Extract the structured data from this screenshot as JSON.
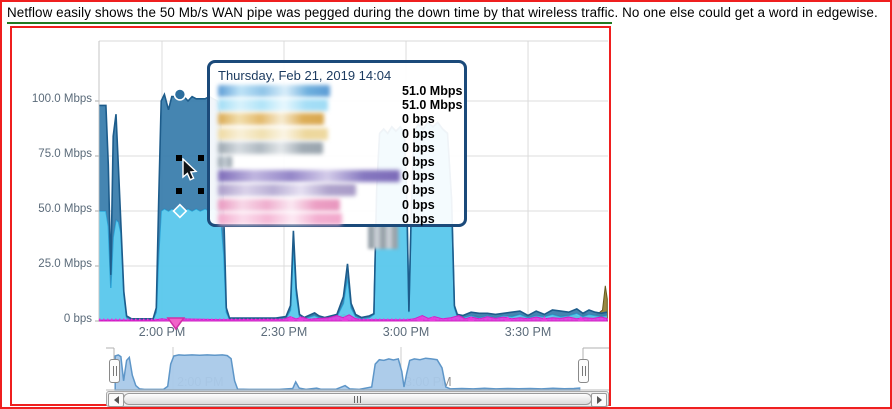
{
  "caption": "Netflow easily shows the 50 Mb/s WAN pipe was pegged during the down time by that wireless traffic.  No one else could get a word in edgewise.",
  "tooltip": {
    "title": "Thursday, Feb 21, 2019 14:04",
    "rows": [
      {
        "value": "51.0 Mbps",
        "chip_width": 112,
        "chip_colors": [
          "#5B9BD5",
          "#BEE3F7",
          "#8FC4E8",
          "#D9EEFA",
          "#6FB0DE"
        ]
      },
      {
        "value": "51.0 Mbps",
        "chip_width": 110,
        "chip_colors": [
          "#9FDCF5",
          "#D8F2FC",
          "#B0E4F8",
          "#E8F8FE",
          "#A5DEF6"
        ]
      },
      {
        "value": "0 bps",
        "chip_width": 106,
        "chip_colors": [
          "#D9A850",
          "#F2DFAE",
          "#E3B96B",
          "#F7ECD2",
          "#DDAE58"
        ]
      },
      {
        "value": "0 bps",
        "chip_width": 110,
        "chip_colors": [
          "#EED9A0",
          "#F9F0D8",
          "#F0E0B0",
          "#FBF5E5",
          "#EDD79C"
        ]
      },
      {
        "value": "0 bps",
        "chip_width": 105,
        "chip_colors": [
          "#9AA5AE",
          "#D5DBE0",
          "#AEB8C0",
          "#E3E7EA",
          "#A0ABB4"
        ]
      },
      {
        "value": "0 bps",
        "chip_width": 14,
        "chip_colors": [
          "#8C98A3",
          "#C9D1D8"
        ]
      },
      {
        "value": "0 bps",
        "chip_width": 182,
        "chip_colors": [
          "#7C6BB8",
          "#C0B6E0",
          "#9486C8",
          "#D4CCEA",
          "#8678C0"
        ]
      },
      {
        "value": "0 bps",
        "chip_width": 138,
        "chip_colors": [
          "#A99CC8",
          "#DAD2EA",
          "#B8AED4",
          "#E6E0F2",
          "#AFA3CC"
        ]
      },
      {
        "value": "0 bps",
        "chip_width": 122,
        "chip_colors": [
          "#E896BE",
          "#F8D8E8",
          "#EFAECE",
          "#FBE8F2",
          "#EC9FC4"
        ]
      },
      {
        "value": "0 bps",
        "chip_width": 124,
        "chip_colors": [
          "#F2A8CC",
          "#FBDCEC",
          "#F5B8D6",
          "#FDEAF4",
          "#F3AED0"
        ]
      }
    ]
  },
  "chart_data": {
    "type": "area",
    "title": "",
    "x_unit": "minutes_after_1pm",
    "x_range": [
      104.6,
      229.5
    ],
    "grid": true,
    "y_axis": {
      "max": 110,
      "ticks": [
        {
          "v": 100,
          "label": "100.0 Mbps"
        },
        {
          "v": 75,
          "label": "75.0 Mbps"
        },
        {
          "v": 50,
          "label": "50.0 Mbps"
        },
        {
          "v": 25,
          "label": "25.0 Mbps"
        },
        {
          "v": 0,
          "label": "0 bps"
        }
      ]
    },
    "x_axis": {
      "ticks": [
        {
          "t": 120,
          "label": "2:00 PM"
        },
        {
          "t": 150,
          "label": "2:30 PM"
        },
        {
          "t": 180,
          "label": "3:00 PM"
        },
        {
          "t": 210,
          "label": "3:30 PM"
        }
      ]
    },
    "stacked": {
      "names": [
        "redacted-series-cyan",
        "redacted-series-blue"
      ],
      "colors": {
        "bottom_fill": "#58C7EC",
        "bottom_line": "#2AA7DA",
        "top_fill": "#3B7EAD",
        "top_line": "#1D5C8B"
      },
      "points": [
        [
          104.6,
          50,
          48
        ],
        [
          106.2,
          50,
          48
        ],
        [
          106.8,
          43,
          28
        ],
        [
          107.4,
          15,
          6
        ],
        [
          108.0,
          38,
          46
        ],
        [
          108.7,
          46,
          48
        ],
        [
          109.3,
          45,
          24
        ],
        [
          109.9,
          40,
          4
        ],
        [
          110.6,
          12,
          1.5
        ],
        [
          111.3,
          1.5,
          0.8
        ],
        [
          112.5,
          0.6,
          0.4
        ],
        [
          117.8,
          0.6,
          0.4
        ],
        [
          118.6,
          4,
          2
        ],
        [
          119.2,
          30,
          25
        ],
        [
          119.8,
          50,
          50
        ],
        [
          120.6,
          51,
          52
        ],
        [
          121.6,
          50,
          46
        ],
        [
          122.4,
          51,
          51
        ],
        [
          123.4,
          50,
          52
        ],
        [
          124.4,
          51,
          51
        ],
        [
          125.4,
          50,
          52
        ],
        [
          126.4,
          51,
          49
        ],
        [
          127.4,
          50,
          52
        ],
        [
          128.4,
          51,
          50
        ],
        [
          129.4,
          50,
          51
        ],
        [
          130.6,
          51,
          50
        ],
        [
          131.6,
          50,
          52
        ],
        [
          132.6,
          51,
          50
        ],
        [
          133.6,
          50,
          50
        ],
        [
          134.4,
          48,
          46
        ],
        [
          135.2,
          30,
          18
        ],
        [
          135.8,
          4,
          2
        ],
        [
          136.6,
          0.8,
          0.5
        ],
        [
          140,
          0.8,
          0.5
        ],
        [
          148,
          0.8,
          0.5
        ],
        [
          150.5,
          1.2,
          0.8
        ],
        [
          151.6,
          5,
          2
        ],
        [
          152.3,
          34,
          7
        ],
        [
          153.0,
          12,
          3
        ],
        [
          153.8,
          2,
          1
        ],
        [
          155,
          1,
          0.6
        ],
        [
          157.5,
          2.5,
          1.2
        ],
        [
          158.6,
          1.5,
          0.8
        ],
        [
          160,
          1,
          0.6
        ],
        [
          163,
          2,
          1
        ],
        [
          164.6,
          8,
          3
        ],
        [
          165.6,
          20,
          6
        ],
        [
          166.5,
          6,
          2
        ],
        [
          167.6,
          2,
          1
        ],
        [
          169,
          1,
          0.6
        ],
        [
          171,
          1.5,
          0.8
        ],
        [
          172.1,
          3,
          0.3
        ],
        [
          172.8,
          60,
          0.3
        ],
        [
          173.5,
          85,
          0.3
        ],
        [
          174.5,
          87,
          0.3
        ],
        [
          175.5,
          85,
          0.3
        ],
        [
          176.5,
          88,
          0.3
        ],
        [
          177.5,
          86,
          0.3
        ],
        [
          178.6,
          88,
          0.3
        ],
        [
          179.6,
          85,
          0.3
        ],
        [
          180.2,
          55,
          0.3
        ],
        [
          180.7,
          4,
          0.3
        ],
        [
          181.3,
          50,
          0.3
        ],
        [
          182.0,
          86,
          0.3
        ],
        [
          183.0,
          89,
          0.3
        ],
        [
          184.2,
          87,
          0.3
        ],
        [
          185.4,
          90,
          0.3
        ],
        [
          186.6,
          88,
          0.3
        ],
        [
          187.8,
          90,
          0.3
        ],
        [
          189.0,
          87,
          0.3
        ],
        [
          190.2,
          85,
          0.3
        ],
        [
          191.2,
          55,
          0.3
        ],
        [
          191.9,
          6,
          1
        ],
        [
          192.6,
          2,
          1
        ],
        [
          194,
          1.5,
          1
        ],
        [
          196,
          2.5,
          1.5
        ],
        [
          198,
          1.5,
          2
        ],
        [
          200,
          2.5,
          1
        ],
        [
          202,
          1.5,
          1.5
        ],
        [
          204,
          2.5,
          1
        ],
        [
          206,
          2,
          2
        ],
        [
          208,
          3,
          1.5
        ],
        [
          210,
          1.5,
          1
        ],
        [
          212,
          2.5,
          2
        ],
        [
          214,
          2,
          1
        ],
        [
          216,
          3,
          2
        ],
        [
          218,
          2,
          2.5
        ],
        [
          220,
          2.5,
          1.5
        ],
        [
          222,
          3.5,
          2
        ],
        [
          223.5,
          2,
          1.5
        ],
        [
          225,
          3,
          2
        ],
        [
          226.5,
          2.5,
          1.5
        ],
        [
          228,
          2,
          1.5
        ],
        [
          229.4,
          2.5,
          1.5
        ]
      ]
    },
    "extra_series": [
      {
        "name": "redacted-series-olive",
        "fill": "#8F7F33",
        "line": "#655A1E",
        "points": [
          [
            104.6,
            0.3
          ],
          [
            148,
            0.3
          ],
          [
            150,
            0.8
          ],
          [
            151.5,
            1.5
          ],
          [
            153,
            0.8
          ],
          [
            156,
            1.5
          ],
          [
            157.8,
            3.5
          ],
          [
            159,
            1
          ],
          [
            161,
            0.8
          ],
          [
            163.5,
            2
          ],
          [
            164.8,
            3
          ],
          [
            166,
            1.5
          ],
          [
            168,
            0.6
          ],
          [
            171,
            0.4
          ],
          [
            173,
            0.3
          ],
          [
            192,
            0.5
          ],
          [
            193.5,
            2
          ],
          [
            195,
            1
          ],
          [
            197,
            2.5
          ],
          [
            199,
            1.2
          ],
          [
            201,
            2
          ],
          [
            203,
            1
          ],
          [
            205,
            2.2
          ],
          [
            207,
            1.2
          ],
          [
            209,
            2.5
          ],
          [
            211,
            1.5
          ],
          [
            213,
            2
          ],
          [
            215,
            1
          ],
          [
            217,
            2.5
          ],
          [
            219,
            1.5
          ],
          [
            221,
            3
          ],
          [
            222.5,
            1.8
          ],
          [
            224,
            3.5
          ],
          [
            225.5,
            2
          ],
          [
            227,
            3
          ],
          [
            228.3,
            5
          ],
          [
            229.0,
            16
          ],
          [
            229.5,
            10
          ]
        ]
      },
      {
        "name": "redacted-series-magenta",
        "fill": "#E93BDC",
        "line": "#D21FC4",
        "points": [
          [
            104.6,
            0.4
          ],
          [
            118,
            0.4
          ],
          [
            120,
            1
          ],
          [
            122,
            0.6
          ],
          [
            124,
            1
          ],
          [
            135,
            0.6
          ],
          [
            150,
            0.8
          ],
          [
            151.5,
            2
          ],
          [
            153,
            1
          ],
          [
            154.5,
            1.8
          ],
          [
            156,
            0.8
          ],
          [
            161,
            1.5
          ],
          [
            163,
            2.5
          ],
          [
            164.5,
            1.5
          ],
          [
            166,
            2.8
          ],
          [
            167.5,
            1.2
          ],
          [
            169,
            0.6
          ],
          [
            180,
            0.5
          ],
          [
            182,
            1
          ],
          [
            184,
            2.5
          ],
          [
            185.5,
            1.2
          ],
          [
            187,
            2
          ],
          [
            189,
            1
          ],
          [
            191,
            1.5
          ],
          [
            193,
            2.5
          ],
          [
            194.5,
            1
          ],
          [
            196,
            1.8
          ],
          [
            198,
            1
          ],
          [
            200,
            2
          ],
          [
            202,
            1.2
          ],
          [
            204,
            1.8
          ],
          [
            206,
            1
          ],
          [
            208,
            1.5
          ],
          [
            210,
            1
          ],
          [
            212,
            1.8
          ],
          [
            214,
            1
          ],
          [
            216,
            1.5
          ],
          [
            218,
            1.2
          ],
          [
            220,
            1.8
          ],
          [
            222,
            1
          ],
          [
            224,
            1.5
          ],
          [
            226,
            1.2
          ],
          [
            228,
            1.8
          ],
          [
            229.4,
            1.2
          ]
        ]
      }
    ],
    "baseline_dotted_color": "#EE2EE0",
    "hover": {
      "t": 124.4,
      "total_v": 103,
      "mid_v": 50
    },
    "baseline_marker": {
      "big_t": 123.4,
      "small_ts": [
        151.8,
        154,
        165,
        183.5,
        186.5,
        196,
        205,
        214,
        223
      ]
    },
    "overview": {
      "fill": "#A9C9E9",
      "line": "#5E96C8",
      "x_ticks": [
        {
          "t": 120,
          "label": "2:00 PM"
        },
        {
          "t": 180,
          "label": "3:00 PM"
        }
      ],
      "points": [
        [
          104.8,
          92
        ],
        [
          105.6,
          95
        ],
        [
          106.3,
          90
        ],
        [
          107.0,
          25
        ],
        [
          107.8,
          80
        ],
        [
          108.5,
          88
        ],
        [
          109.3,
          40
        ],
        [
          110.2,
          12
        ],
        [
          111.2,
          3
        ],
        [
          112.5,
          1.5
        ],
        [
          117.5,
          1.5
        ],
        [
          118.6,
          10
        ],
        [
          119.4,
          70
        ],
        [
          120.2,
          92
        ],
        [
          121.5,
          95
        ],
        [
          123,
          94
        ],
        [
          125,
          95
        ],
        [
          127,
          94
        ],
        [
          129,
          95
        ],
        [
          131,
          94
        ],
        [
          133,
          95
        ],
        [
          134.3,
          93
        ],
        [
          135.3,
          85
        ],
        [
          136.2,
          25
        ],
        [
          137,
          2.5
        ],
        [
          140,
          1.5
        ],
        [
          148,
          1.5
        ],
        [
          151.5,
          4
        ],
        [
          152.3,
          22
        ],
        [
          153.2,
          5
        ],
        [
          155,
          1.5
        ],
        [
          157.8,
          5
        ],
        [
          159,
          2
        ],
        [
          163,
          2.5
        ],
        [
          165.3,
          12
        ],
        [
          166.5,
          3
        ],
        [
          169,
          1.5
        ],
        [
          172.3,
          8
        ],
        [
          173.2,
          70
        ],
        [
          174.3,
          82
        ],
        [
          175.5,
          80
        ],
        [
          176.8,
          84
        ],
        [
          178,
          81
        ],
        [
          179.3,
          84
        ],
        [
          180.2,
          50
        ],
        [
          180.8,
          8
        ],
        [
          181.5,
          45
        ],
        [
          182.3,
          80
        ],
        [
          183.5,
          84
        ],
        [
          185,
          82
        ],
        [
          186.5,
          86
        ],
        [
          188,
          84
        ],
        [
          189.5,
          82
        ],
        [
          190.8,
          60
        ],
        [
          191.8,
          8
        ],
        [
          193,
          3
        ],
        [
          196,
          4
        ],
        [
          199,
          3
        ],
        [
          202,
          4.5
        ],
        [
          205,
          3
        ],
        [
          208,
          4
        ],
        [
          211,
          3.5
        ],
        [
          214,
          4
        ],
        [
          217,
          3
        ],
        [
          220,
          4.5
        ],
        [
          223,
          3.5
        ],
        [
          225.5,
          4
        ],
        [
          227,
          5
        ]
      ]
    }
  }
}
